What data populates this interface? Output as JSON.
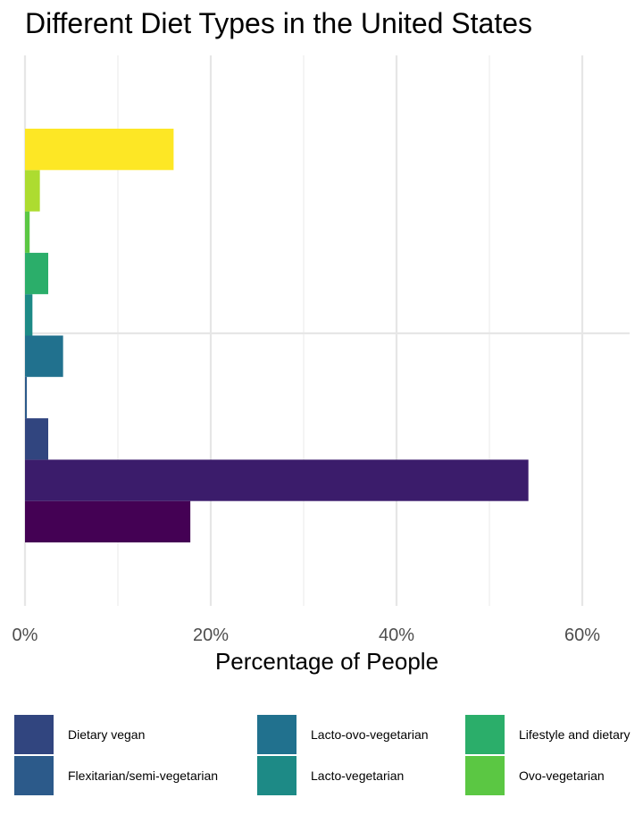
{
  "chart_data": {
    "type": "bar",
    "orientation": "horizontal",
    "title": "Different Diet Types in the United States",
    "xlabel": "Percentage of People",
    "ylabel": "",
    "xlim": [
      0,
      65
    ],
    "xticks": [
      0,
      20,
      40,
      60
    ],
    "xtick_labels": [
      "0%",
      "20%",
      "40%",
      "60%"
    ],
    "grid": true,
    "legend_position": "bottom",
    "bars": [
      {
        "value": 17.8,
        "color": "#440154"
      },
      {
        "value": 54.2,
        "color": "#3b1c6b"
      },
      {
        "value": 2.5,
        "color": "#31457f"
      },
      {
        "value": 0.2,
        "color": "#2c5a8a"
      },
      {
        "value": 4.1,
        "color": "#21718e"
      },
      {
        "value": 0.8,
        "color": "#1d8a86"
      },
      {
        "value": 2.5,
        "color": "#2bae6a"
      },
      {
        "value": 0.5,
        "color": "#5bc743"
      },
      {
        "value": 1.6,
        "color": "#addc30"
      },
      {
        "value": 16.0,
        "color": "#fde725"
      }
    ],
    "legend": [
      {
        "label": "Dietary vegan",
        "color": "#31457f"
      },
      {
        "label": "Flexitarian/semi-vegetarian",
        "color": "#2c5a8a"
      },
      {
        "label": "Lacto-ovo-vegetarian",
        "color": "#21718e"
      },
      {
        "label": "Lacto-vegetarian",
        "color": "#1d8a86"
      },
      {
        "label": "Lifestyle and dietary",
        "color": "#2bae6a"
      },
      {
        "label": "Ovo-vegetarian",
        "color": "#5bc743"
      }
    ]
  }
}
